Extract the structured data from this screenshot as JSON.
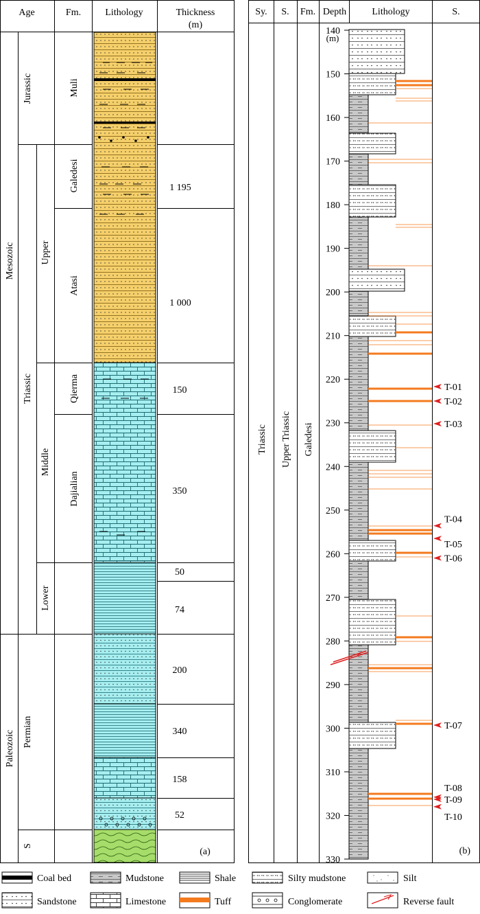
{
  "panel_a": {
    "headers": {
      "age": "Age",
      "fm": "Fm.",
      "lithology": "Lithology",
      "thickness": "Thickness\n(m)"
    },
    "eras": [
      "Mesozoic",
      "Paleozoic"
    ],
    "systems": [
      "Jurassic",
      "Triassic",
      "Permian",
      "S"
    ],
    "series": [
      "Upper",
      "Middle",
      "Lower"
    ],
    "formations": [
      "Muli",
      "Galedesi",
      "Atasi",
      "Qierma",
      "Dajialian"
    ],
    "thicknesses": [
      "1 195",
      "1 000",
      "150",
      "350",
      "50",
      "74",
      "200",
      "340",
      "158",
      "52"
    ],
    "label": "(a)"
  },
  "panel_b": {
    "headers": {
      "sy": "Sy.",
      "s": "S.",
      "fm": "Fm.",
      "depth": "Depth",
      "lithology": "Lithology",
      "samples": "S."
    },
    "system": "Triassic",
    "series": "Upper Triassic",
    "formation": "Galedesi",
    "depth_unit": "(m)",
    "depth_ticks": [
      140,
      150,
      160,
      170,
      180,
      190,
      200,
      210,
      220,
      230,
      240,
      250,
      260,
      270,
      280,
      290,
      300,
      310,
      320,
      330
    ],
    "samples": [
      {
        "name": "T-01",
        "depth": 221.7
      },
      {
        "name": "T-02",
        "depth": 225.0
      },
      {
        "name": "T-03",
        "depth": 230.2
      },
      {
        "name": "T-04",
        "depth": 253.6
      },
      {
        "name": "T-05",
        "depth": 256.5
      },
      {
        "name": "T-06",
        "depth": 261.0
      },
      {
        "name": "T-07",
        "depth": 299.3
      },
      {
        "name": "T-08",
        "depth": 315.8
      },
      {
        "name": "T-09",
        "depth": 316.3
      },
      {
        "name": "T-10",
        "depth": 318.0
      }
    ],
    "label": "(b)"
  },
  "legend": [
    "Coal bed",
    "Mudstone",
    "Shale",
    "Silty mudstone",
    "Silt",
    "Sandstone",
    "Limestone",
    "Tuff",
    "Conglomerate",
    "Reverse fault"
  ],
  "colors": {
    "yellow": "#f5cf6a",
    "cyan": "#a6eef0",
    "green": "#a6dd6a",
    "gray": "#c8c8c8",
    "tuff": "#f47a1e"
  }
}
